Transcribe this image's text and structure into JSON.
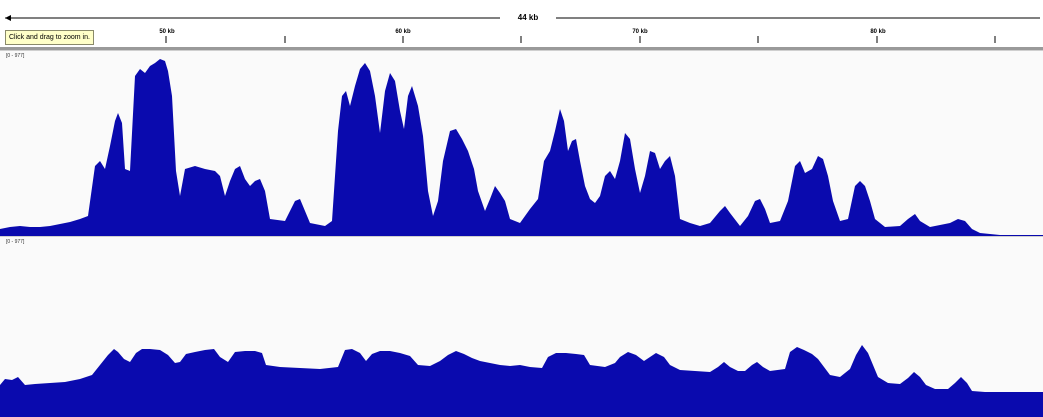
{
  "ruler": {
    "span_label": "44 kb",
    "ticks": [
      {
        "label": "50 kb"
      },
      {
        "label": "60 kb"
      },
      {
        "label": "70 kb"
      },
      {
        "label": "80 kb"
      }
    ]
  },
  "tooltip": {
    "text": "Click and drag to zoom in."
  },
  "tracks": [
    {
      "range_label": "[0 - 977]"
    },
    {
      "range_label": "[0 - 977]"
    }
  ],
  "colors": {
    "signal": "#0a0aae",
    "track_bg": "#fafafa",
    "tooltip_bg": "#ffffc8"
  }
}
